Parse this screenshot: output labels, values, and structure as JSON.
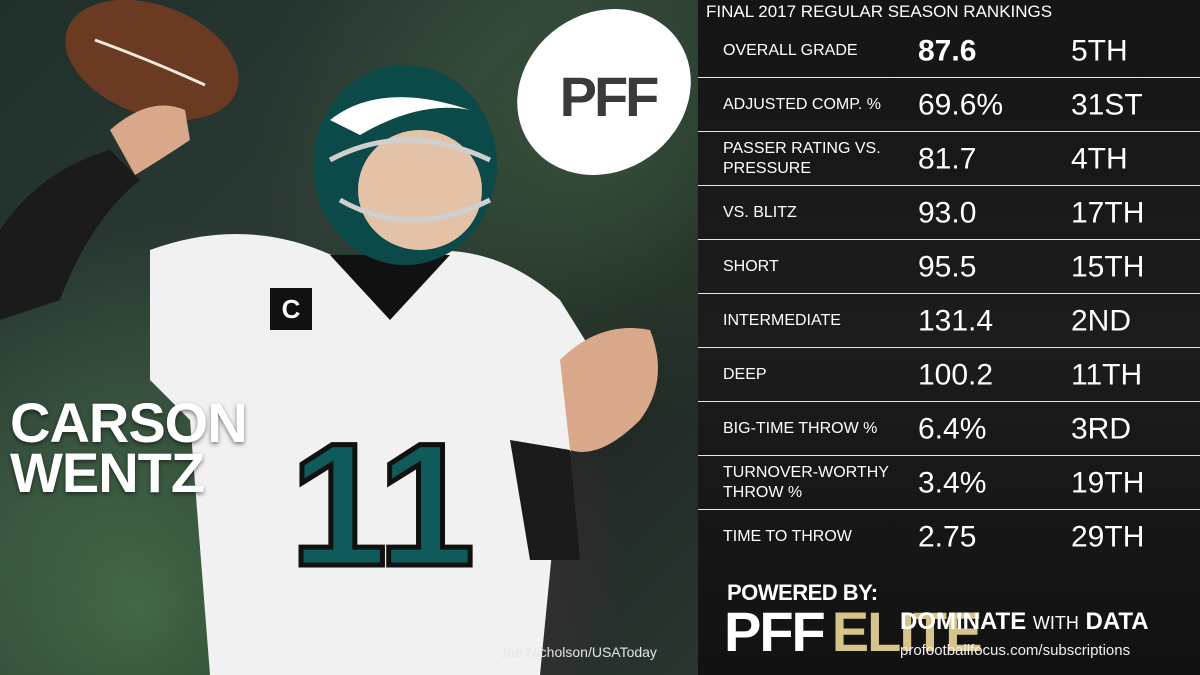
{
  "photo": {
    "player_first": "CARSON",
    "player_last": "WENTZ",
    "credit": "Joe Nicholson/USAToday",
    "jersey_number": "11",
    "captain_patch": "C"
  },
  "logo": {
    "text": "PFF"
  },
  "panel": {
    "title": "FINAL 2017 REGULAR SEASON RANKINGS",
    "rows": [
      {
        "label": "OVERALL GRADE",
        "value": "87.6",
        "rank": "5TH"
      },
      {
        "label": "ADJUSTED COMP. %",
        "value": "69.6%",
        "rank": "31ST"
      },
      {
        "label": "PASSER RATING VS. PRESSURE",
        "value": "81.7",
        "rank": "4TH"
      },
      {
        "label": "VS. BLITZ",
        "value": "93.0",
        "rank": "17TH"
      },
      {
        "label": "SHORT",
        "value": "95.5",
        "rank": "15TH"
      },
      {
        "label": "INTERMEDIATE",
        "value": "131.4",
        "rank": "2ND"
      },
      {
        "label": "DEEP",
        "value": "100.2",
        "rank": "11TH"
      },
      {
        "label": "BIG-TIME THROW %",
        "value": "6.4%",
        "rank": "3RD"
      },
      {
        "label": "TURNOVER-WORTHY THROW %",
        "value": "3.4%",
        "rank": "19TH"
      },
      {
        "label": "TIME TO THROW",
        "value": "2.75",
        "rank": "29TH"
      }
    ]
  },
  "footer": {
    "powered_by": "POWERED BY:",
    "pff": "PFF",
    "elite": "ELITE",
    "dominate": "DOMINATE",
    "with": "WITH",
    "data": "DATA",
    "url": "profootballfocus.com/subscriptions"
  },
  "colors": {
    "elite_gold": "#d6c48a",
    "eagles_green": "#0f5a5a",
    "panel_bg": "#181818"
  }
}
